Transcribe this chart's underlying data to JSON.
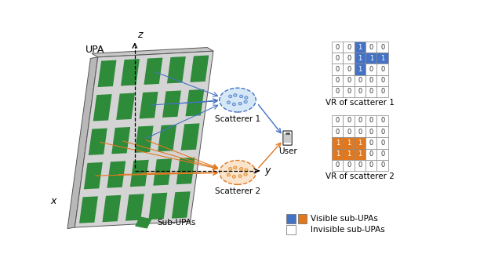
{
  "vr1": [
    [
      0,
      0,
      1,
      0,
      0
    ],
    [
      0,
      0,
      1,
      1,
      1
    ],
    [
      0,
      0,
      1,
      0,
      0
    ],
    [
      0,
      0,
      0,
      0,
      0
    ],
    [
      0,
      0,
      0,
      0,
      0
    ]
  ],
  "vr2": [
    [
      0,
      0,
      0,
      0,
      0
    ],
    [
      0,
      0,
      0,
      0,
      0
    ],
    [
      1,
      1,
      1,
      0,
      0
    ],
    [
      1,
      1,
      1,
      0,
      0
    ],
    [
      0,
      0,
      0,
      0,
      0
    ]
  ],
  "blue_color": "#4472C4",
  "orange_color": "#E07820",
  "green_color": "#2E8B3A",
  "light_gray": "#D4D4D4",
  "dark_gray": "#A0A0A0",
  "label_vr1": "VR of scatterer 1",
  "label_vr2": "VR of scatterer 2",
  "label_subupa": "Sub-UPAs",
  "label_visible": "Visible sub-UPAs",
  "label_invisible": "Invisible sub-UPAs",
  "label_upa": "UPA",
  "label_scatterer1": "Scatterer 1",
  "label_scatterer2": "Scatterer 2",
  "label_user": "User"
}
